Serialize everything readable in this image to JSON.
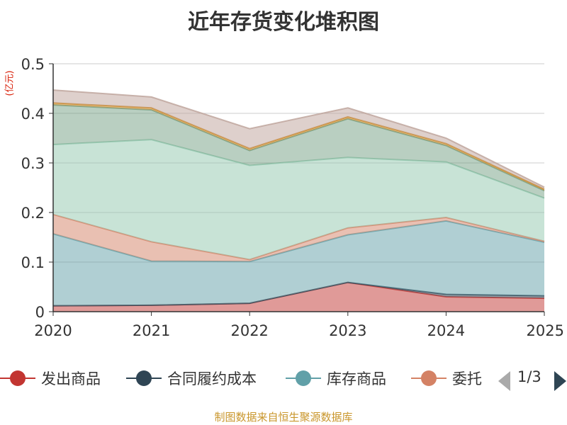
{
  "chart_data": {
    "type": "area",
    "stacked": true,
    "title": "近年存货变化堆积图",
    "unit_label": "(亿元)",
    "x": [
      "2020",
      "2021",
      "2022",
      "2023",
      "2024",
      "2025"
    ],
    "ylim": [
      0,
      0.5
    ],
    "yticks": [
      "0",
      "0.1",
      "0.2",
      "0.3",
      "0.4",
      "0.5"
    ],
    "grid": true,
    "legend_position": "bottom",
    "series": [
      {
        "name": "发出商品",
        "color": "#c23531",
        "values": [
          0.012,
          0.013,
          0.017,
          0.059,
          0.03,
          0.027
        ]
      },
      {
        "name": "合同履约成本",
        "color": "#2f4554",
        "values": [
          0.0,
          0.0,
          0.0,
          0.0,
          0.005,
          0.005
        ]
      },
      {
        "name": "库存商品",
        "color": "#61a0a8",
        "values": [
          0.145,
          0.089,
          0.084,
          0.096,
          0.148,
          0.108
        ]
      },
      {
        "name": "委托",
        "color": "#d48265",
        "values": [
          0.039,
          0.039,
          0.004,
          0.014,
          0.007,
          0.002
        ]
      },
      {
        "name": "",
        "color": "#91c7ae",
        "values": [
          0.141,
          0.206,
          0.19,
          0.142,
          0.112,
          0.087
        ]
      },
      {
        "name": "",
        "color": "#749f83",
        "values": [
          0.08,
          0.06,
          0.03,
          0.078,
          0.033,
          0.015
        ]
      },
      {
        "name": "",
        "color": "#ca8622",
        "values": [
          0.004,
          0.004,
          0.004,
          0.004,
          0.004,
          0.003
        ]
      },
      {
        "name": "",
        "color": "#bda29a",
        "values": [
          0.026,
          0.022,
          0.04,
          0.018,
          0.011,
          0.004
        ]
      }
    ]
  },
  "legend": {
    "items": [
      {
        "label": "发出商品",
        "color": "#c23531"
      },
      {
        "label": "合同履约成本",
        "color": "#2f4554"
      },
      {
        "label": "库存商品",
        "color": "#61a0a8"
      },
      {
        "label": "委托",
        "color": "#d48265"
      }
    ],
    "page_indicator": "1/3"
  },
  "source_text": "制图数据来自恒生聚源数据库"
}
